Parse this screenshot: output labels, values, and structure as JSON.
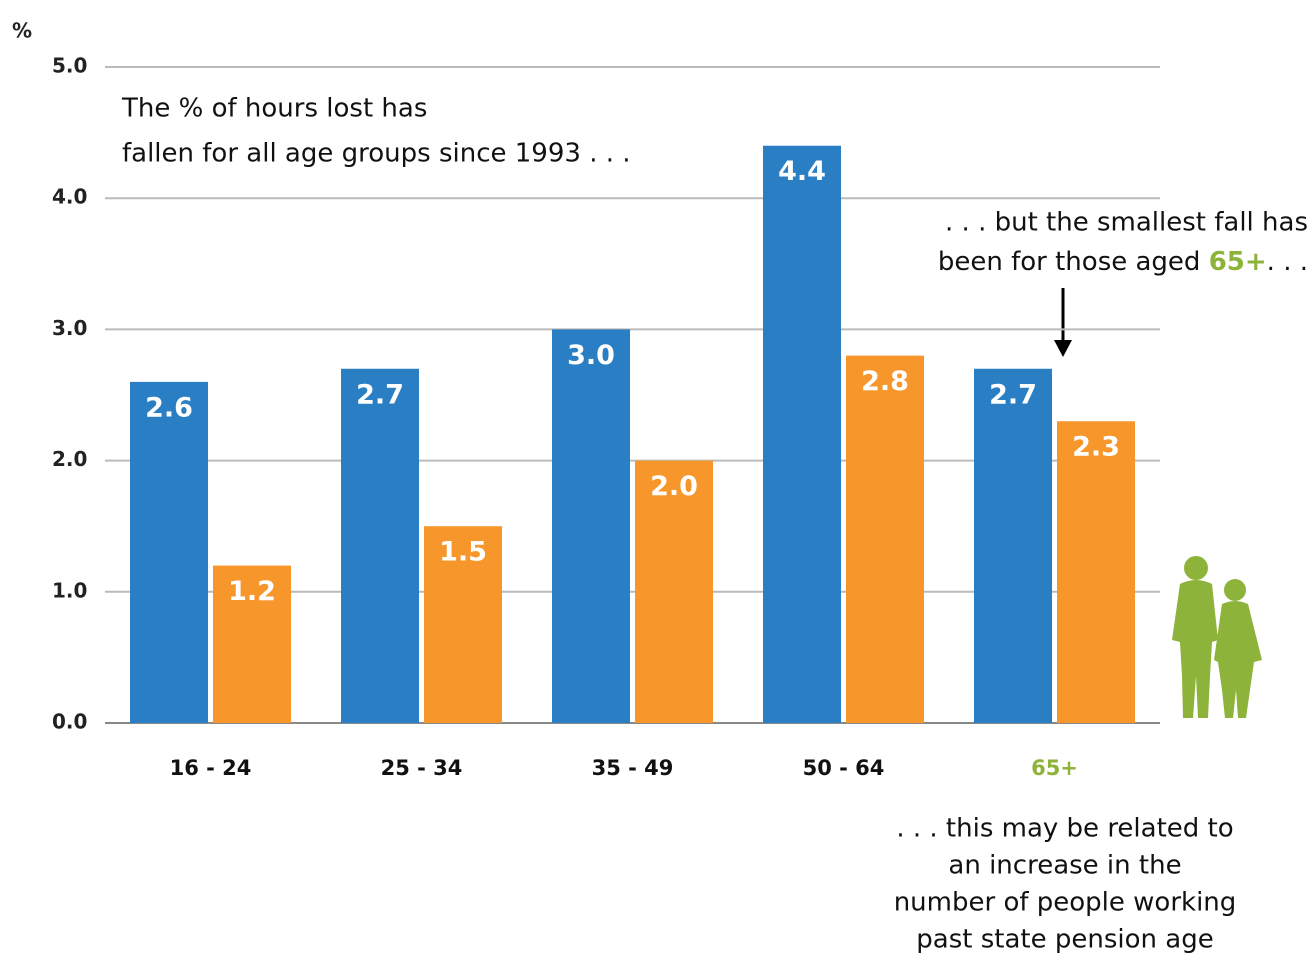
{
  "chart_data": {
    "type": "bar",
    "y_unit": "%",
    "categories": [
      "16 - 24",
      "25 - 34",
      "35 - 49",
      "50 - 64",
      "65+"
    ],
    "category_label_colors": [
      "#111111",
      "#111111",
      "#111111",
      "#111111",
      "#8db33a"
    ],
    "series": [
      {
        "color": "#2a7fc4",
        "values": [
          2.6,
          2.7,
          3.0,
          4.4,
          2.7
        ],
        "value_labels": [
          "2.6",
          "2.7",
          "3.0",
          "4.4",
          "2.7"
        ]
      },
      {
        "color": "#f7962b",
        "values": [
          1.2,
          1.5,
          2.0,
          2.8,
          2.3
        ],
        "value_labels": [
          "1.2",
          "1.5",
          "2.0",
          "2.8",
          "2.3"
        ]
      }
    ],
    "ylim": [
      0,
      5
    ],
    "yticks": [
      {
        "value": 0,
        "label": "0.0"
      },
      {
        "value": 1,
        "label": "1.0"
      },
      {
        "value": 2,
        "label": "2.0"
      },
      {
        "value": 3,
        "label": "3.0"
      },
      {
        "value": 4,
        "label": "4.0"
      },
      {
        "value": 5,
        "label": "5.0"
      }
    ],
    "grid": true,
    "annotations": [
      {
        "lines": [
          "The % of hours lost has",
          "fallen for all age groups since 1993 . . ."
        ]
      },
      {
        "lines": [
          ". . . but the smallest fall has"
        ],
        "lead": "been for those aged ",
        "highlight": "65+",
        "tail": ". . .",
        "highlight_color": "#8db33a"
      },
      {
        "lines": [
          ". . . this may be related to",
          "an increase in the",
          "number of people working",
          "past state pension age"
        ]
      }
    ]
  }
}
